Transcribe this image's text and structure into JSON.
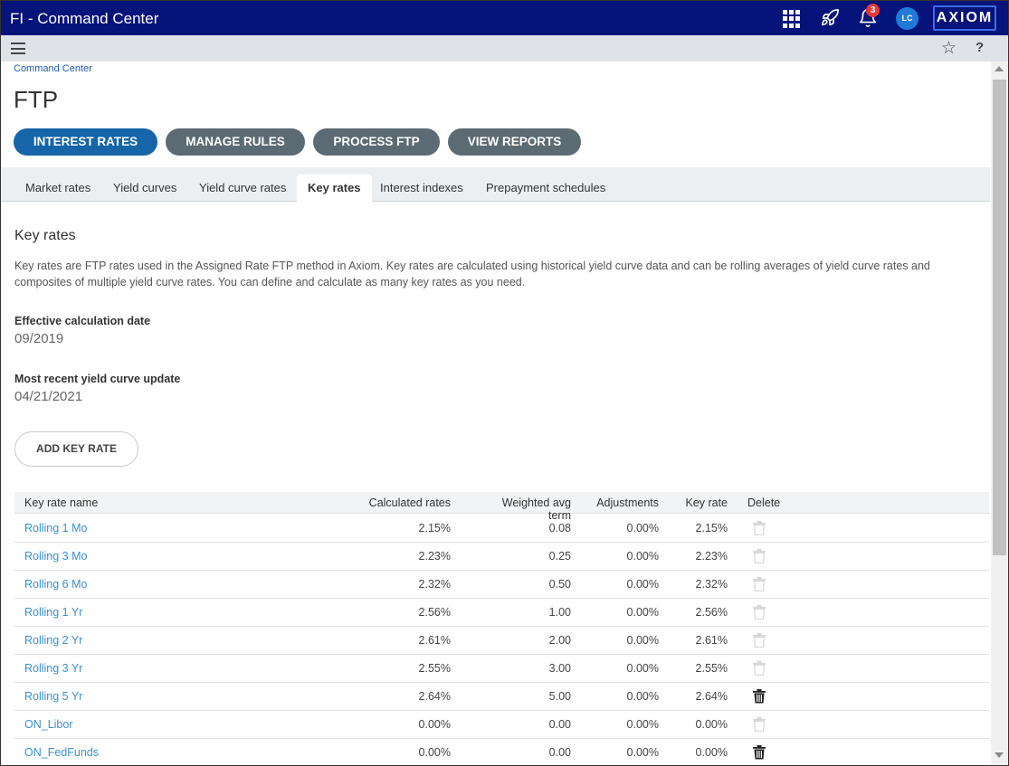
{
  "app": {
    "title": "FI - Command Center",
    "notification_count": "3",
    "user_initials": "LC",
    "logo_text": "AXIOM"
  },
  "header": {
    "breadcrumb": "Command Center",
    "page_title": "FTP"
  },
  "nav_buttons": [
    "INTEREST RATES",
    "MANAGE RULES",
    "PROCESS FTP",
    "VIEW REPORTS"
  ],
  "tabs": [
    "Market rates",
    "Yield curves",
    "Yield curve rates",
    "Key rates",
    "Interest indexes",
    "Prepayment schedules"
  ],
  "content": {
    "section_title": "Key rates",
    "description": "Key rates are FTP rates used in the Assigned Rate FTP method in Axiom. Key rates are calculated using historical yield curve data and can be rolling averages of yield curve rates and composites of multiple yield curve rates. You can define and calculate as many key rates as you need.",
    "effective_label": "Effective calculation date",
    "effective_value": "09/2019",
    "recent_label": "Most recent yield curve update",
    "recent_value": "04/21/2021",
    "add_button": "ADD KEY RATE"
  },
  "table": {
    "headers": {
      "name": "Key rate name",
      "calc": "Calculated rates",
      "wat": "Weighted avg term",
      "adj": "Adjustments",
      "kr": "Key rate",
      "del": "Delete"
    },
    "rows": [
      {
        "name": "Rolling 1 Mo",
        "calc": "2.15%",
        "wat": "0.08",
        "adj": "0.00%",
        "kr": "2.15%",
        "deletable": false
      },
      {
        "name": "Rolling 3 Mo",
        "calc": "2.23%",
        "wat": "0.25",
        "adj": "0.00%",
        "kr": "2.23%",
        "deletable": false
      },
      {
        "name": "Rolling 6 Mo",
        "calc": "2.32%",
        "wat": "0.50",
        "adj": "0.00%",
        "kr": "2.32%",
        "deletable": false
      },
      {
        "name": "Rolling 1 Yr",
        "calc": "2.56%",
        "wat": "1.00",
        "adj": "0.00%",
        "kr": "2.56%",
        "deletable": false
      },
      {
        "name": "Rolling 2 Yr",
        "calc": "2.61%",
        "wat": "2.00",
        "adj": "0.00%",
        "kr": "2.61%",
        "deletable": false
      },
      {
        "name": "Rolling 3 Yr",
        "calc": "2.55%",
        "wat": "3.00",
        "adj": "0.00%",
        "kr": "2.55%",
        "deletable": false
      },
      {
        "name": "Rolling 5 Yr",
        "calc": "2.64%",
        "wat": "5.00",
        "adj": "0.00%",
        "kr": "2.64%",
        "deletable": true
      },
      {
        "name": "ON_Libor",
        "calc": "0.00%",
        "wat": "0.00",
        "adj": "0.00%",
        "kr": "0.00%",
        "deletable": false
      },
      {
        "name": "ON_FedFunds",
        "calc": "0.00%",
        "wat": "0.00",
        "adj": "0.00%",
        "kr": "0.00%",
        "deletable": true
      }
    ]
  },
  "colors": {
    "topbar": "#06137a",
    "active_pill": "#1565a8",
    "pill": "#5c6b73",
    "link": "#3c8fd0",
    "badge": "#e53935"
  }
}
